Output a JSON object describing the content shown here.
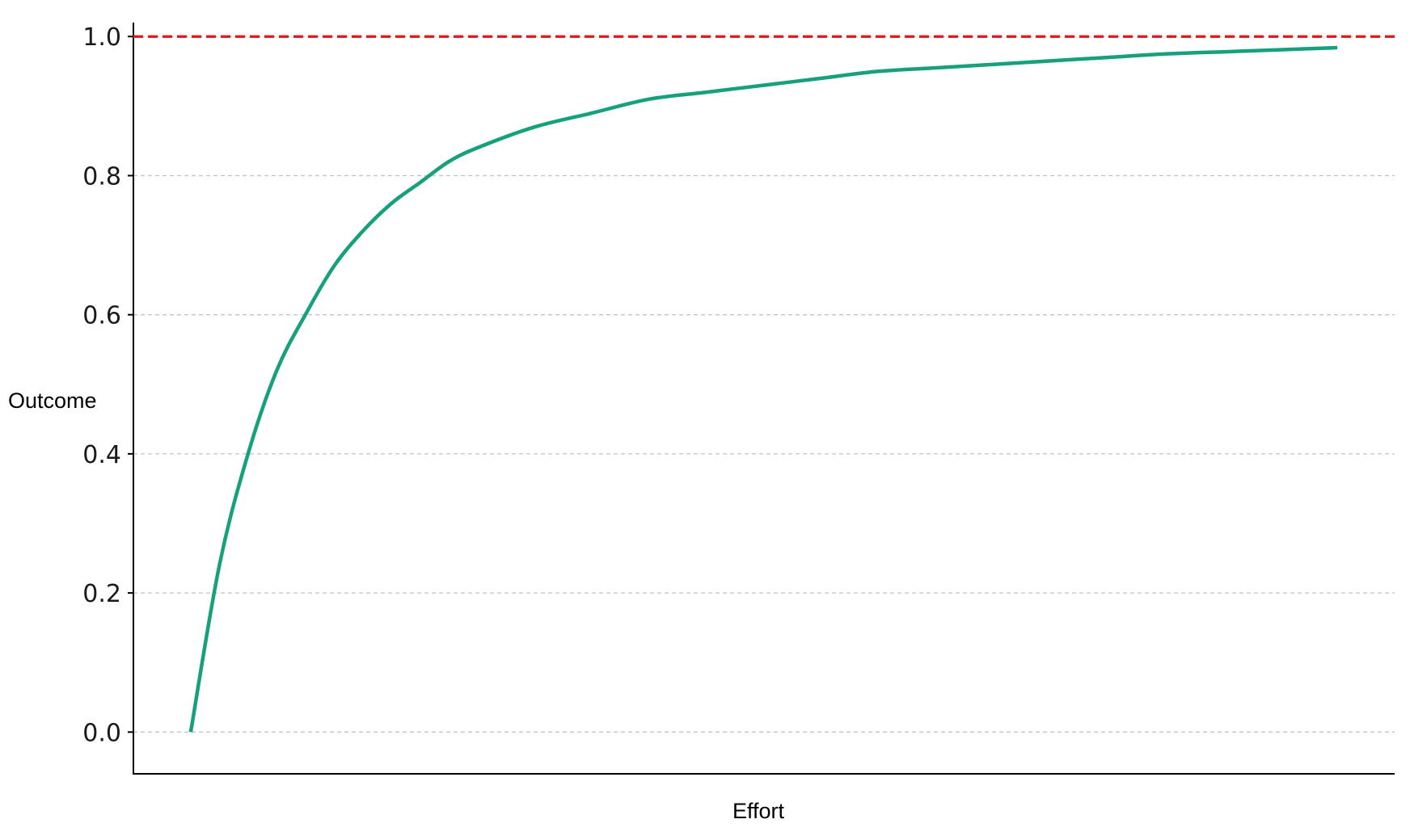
{
  "chart_data": {
    "type": "line",
    "title": "",
    "xlabel": "Effort",
    "ylabel": "Outcome",
    "xlim": [
      -0.05,
      1.05
    ],
    "ylim": [
      -0.06,
      1.02
    ],
    "x_ticks_shown": false,
    "yticks": [
      0.0,
      0.2,
      0.4,
      0.6,
      0.8,
      1.0
    ],
    "ytick_labels": [
      "0.0",
      "0.2",
      "0.4",
      "0.6",
      "0.8",
      "1.0"
    ],
    "grid": "horizontal dashed",
    "series": [
      {
        "color": "#16a07c",
        "x": [
          0.0,
          0.025,
          0.05,
          0.075,
          0.1,
          0.125,
          0.15,
          0.175,
          0.2,
          0.225,
          0.25,
          0.3,
          0.35,
          0.4,
          0.45,
          0.5,
          0.55,
          0.6,
          0.65,
          0.7,
          0.75,
          0.8,
          0.85,
          0.9,
          0.95,
          1.0
        ],
        "y": [
          0.0,
          0.24,
          0.4,
          0.52,
          0.6,
          0.67,
          0.72,
          0.76,
          0.79,
          0.82,
          0.84,
          0.87,
          0.89,
          0.91,
          0.92,
          0.93,
          0.94,
          0.95,
          0.955,
          0.96,
          0.965,
          0.97,
          0.975,
          0.978,
          0.981,
          0.984
        ]
      }
    ],
    "reference_line": {
      "y": 1.0,
      "color": "#ee1111",
      "style": "dashed"
    }
  }
}
